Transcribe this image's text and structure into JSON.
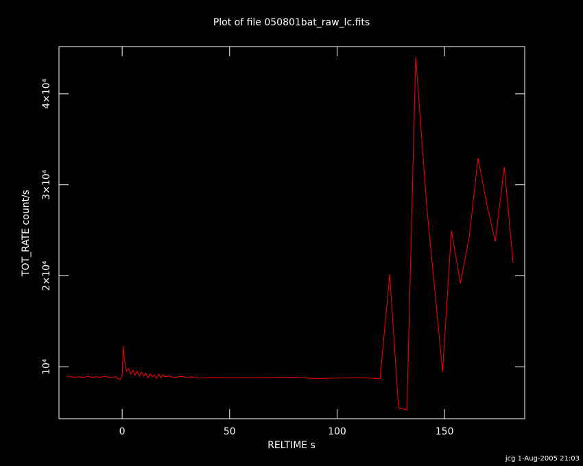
{
  "chart_data": {
    "type": "line",
    "title": "Plot of file 050801bat_raw_lc.fits",
    "x_label": "RELTIME  s",
    "y_label": "TOT_RATE  count/s",
    "footer": "jcg  1-Aug-2005 21:03",
    "color": "#ff0000",
    "x": [
      -25,
      -22,
      -20,
      -18,
      -16,
      -14,
      -12,
      -10,
      -8,
      -6,
      -4,
      -3,
      -2,
      -1,
      0,
      0.5,
      1,
      1.5,
      2,
      3,
      4,
      5,
      6,
      7,
      8,
      9,
      10,
      11,
      12,
      13,
      14,
      15,
      16,
      17,
      18,
      19,
      20,
      22,
      24,
      26,
      28,
      30,
      32,
      35,
      40,
      60,
      80,
      90,
      100,
      110,
      120,
      124.5,
      128.6,
      132.5,
      136.6,
      141.7,
      149.1,
      153.2,
      157.4,
      161.5,
      165.6,
      169.5,
      173.6,
      177.8,
      181.9
    ],
    "values": [
      8950,
      8850,
      8900,
      8800,
      8950,
      8850,
      8900,
      8850,
      8950,
      8850,
      8800,
      8950,
      8700,
      8600,
      9000,
      12250,
      10800,
      10200,
      9500,
      9800,
      9200,
      9600,
      9100,
      9500,
      9000,
      9400,
      9000,
      9300,
      8800,
      9200,
      8900,
      9100,
      8700,
      9200,
      8800,
      9100,
      8900,
      9000,
      8800,
      8900,
      8950,
      8800,
      8900,
      8750,
      8800,
      8780,
      8850,
      8700,
      8750,
      8800,
      8700,
      20150,
      5490,
      5260,
      44060,
      27670,
      9470,
      24960,
      19170,
      24290,
      32930,
      28050,
      23760,
      31950,
      21430
    ],
    "xlim": [
      -29.4,
      187.3
    ],
    "ylim": [
      4290,
      45190
    ],
    "xticks": [
      0,
      50,
      100,
      150
    ],
    "yticks": [
      {
        "value": 10000,
        "label": "10⁴"
      },
      {
        "value": 20000,
        "label": "2×10⁴"
      },
      {
        "value": 30000,
        "label": "3×10⁴"
      },
      {
        "value": 40000,
        "label": "4×10⁴"
      }
    ]
  }
}
